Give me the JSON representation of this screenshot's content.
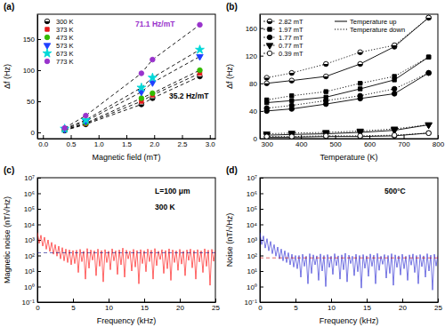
{
  "chart_data": [
    {
      "type": "scatter",
      "title": "(a)",
      "x_label": "Magnetic field (mT)",
      "y_label": "Δf (Hz)",
      "x": [
        0.39,
        0.77,
        1.77,
        1.97,
        2.82
      ],
      "xlim": [
        -0.1,
        3.1
      ],
      "xticks": [
        {
          "value": 0,
          "label": "0.0"
        },
        {
          "value": 0.5,
          "label": "0.5"
        },
        {
          "value": 1,
          "label": "1.0"
        },
        {
          "value": 1.5,
          "label": "1.5"
        },
        {
          "value": 2,
          "label": "2.0"
        },
        {
          "value": 2.5,
          "label": "2.5"
        },
        {
          "value": 3,
          "label": "3.0"
        }
      ],
      "ylim": [
        -10,
        190
      ],
      "yticks": [
        0,
        50,
        100,
        150
      ],
      "legend": "top-left",
      "series": [
        {
          "name": "300 K",
          "color": "#000000",
          "marker": "circle-half",
          "line_style": "dashed",
          "values": [
            3,
            13,
            45,
            55,
            90
          ]
        },
        {
          "name": "373 K",
          "color": "#e41a1c",
          "marker": "square",
          "line_style": "dashed",
          "values": [
            4,
            14,
            50,
            60,
            95
          ]
        },
        {
          "name": "473 K",
          "color": "#33bb00",
          "marker": "circle",
          "line_style": "dashed",
          "values": [
            4,
            15,
            55,
            63,
            100
          ]
        },
        {
          "name": "573 K",
          "color": "#1f3fff",
          "marker": "triangle-down",
          "line_style": "dashed",
          "values": [
            5,
            18,
            65,
            80,
            122
          ]
        },
        {
          "name": "673 K",
          "color": "#00d8d8",
          "marker": "star",
          "line_style": "dashed",
          "values": [
            6,
            20,
            72,
            88,
            133
          ]
        },
        {
          "name": "773 K",
          "color": "#9933cc",
          "marker": "circle",
          "line_style": "dashed",
          "values": [
            7,
            27,
            95,
            117,
            173
          ]
        }
      ],
      "annotations": [
        {
          "text": "71.1 Hz/mT",
          "color": "#9933cc"
        },
        {
          "text": "35.2 Hz/mT",
          "color": "#000000"
        }
      ]
    },
    {
      "type": "line",
      "title": "(b)",
      "x_label": "Temperature (K)",
      "y_label": "Δf (Hz)",
      "x": [
        300,
        373,
        473,
        573,
        673,
        773
      ],
      "xlim": [
        280,
        800
      ],
      "xticks": [
        300,
        400,
        500,
        600,
        700,
        800
      ],
      "ylim": [
        0,
        180
      ],
      "yticks": [
        0,
        40,
        80,
        120,
        160
      ],
      "legend": "top-left",
      "series": [
        {
          "name": "2.82 mT",
          "group": "Temperature up",
          "color": "#000000",
          "marker": "circle-half",
          "line_style": "solid",
          "values": [
            80,
            84,
            90,
            108,
            133,
            175
          ]
        },
        {
          "name": "2.82 mT",
          "group": "Temperature down",
          "color": "#000000",
          "marker": "circle-half",
          "line_style": "dotted",
          "values": [
            88,
            95,
            108,
            125,
            135,
            175
          ]
        },
        {
          "name": "1.97 mT",
          "group": "Temperature up",
          "color": "#000000",
          "marker": "square",
          "line_style": "solid",
          "values": [
            52,
            55,
            60,
            72,
            85,
            118
          ]
        },
        {
          "name": "1.97 mT",
          "group": "Temperature down",
          "color": "#000000",
          "marker": "square",
          "line_style": "dotted",
          "values": [
            56,
            62,
            68,
            80,
            90,
            118
          ]
        },
        {
          "name": "1.77 mT",
          "group": "Temperature up",
          "color": "#000000",
          "marker": "circle",
          "line_style": "solid",
          "values": [
            40,
            43,
            50,
            58,
            65,
            95
          ]
        },
        {
          "name": "1.77 mT",
          "group": "Temperature down",
          "color": "#000000",
          "marker": "circle",
          "line_style": "dotted",
          "values": [
            44,
            48,
            55,
            62,
            72,
            95
          ]
        },
        {
          "name": "0.77 mT",
          "group": "Temperature up",
          "color": "#000000",
          "marker": "triangle-down",
          "line_style": "solid",
          "values": [
            5,
            6,
            7,
            9,
            12,
            20
          ]
        },
        {
          "name": "0.77 mT",
          "group": "Temperature down",
          "color": "#000000",
          "marker": "triangle-down",
          "line_style": "dotted",
          "values": [
            7,
            8,
            9,
            11,
            14,
            20
          ]
        },
        {
          "name": "0.39 mT",
          "group": "Temperature up",
          "color": "#000000",
          "marker": "circle-open",
          "line_style": "solid",
          "values": [
            2,
            2,
            3,
            3,
            4,
            8
          ]
        },
        {
          "name": "0.39 mT",
          "group": "Temperature down",
          "color": "#000000",
          "marker": "circle-open",
          "line_style": "dotted",
          "values": [
            3,
            3,
            4,
            4,
            5,
            8
          ]
        }
      ]
    },
    {
      "type": "line",
      "title": "(c)",
      "x_label": "Frequency (kHz)",
      "y_label": "Magnetic noise (nT/√Hz)",
      "log": "y",
      "x": [
        0,
        0.25,
        0.5,
        0.75,
        1,
        1.25,
        1.5,
        1.75,
        2,
        2.25,
        2.5,
        2.75,
        3,
        3.25,
        3.5,
        3.75,
        4,
        4.25,
        4.5,
        4.75,
        5,
        5.25,
        5.5,
        5.75,
        6,
        6.25,
        6.5,
        6.75,
        7,
        7.25,
        7.5,
        7.75,
        8,
        8.25,
        8.5,
        8.75,
        9,
        9.25,
        9.5,
        9.75,
        10,
        10.25,
        10.5,
        10.75,
        11,
        11.25,
        11.5,
        11.75,
        12,
        12.25,
        12.5,
        12.75,
        13,
        13.25,
        13.5,
        13.75,
        14,
        14.25,
        14.5,
        14.75,
        15,
        15.25,
        15.5,
        15.75,
        16,
        16.25,
        16.5,
        16.75,
        17,
        17.25,
        17.5,
        17.75,
        18,
        18.25,
        18.5,
        18.75,
        19,
        19.25,
        19.5,
        19.75,
        20,
        20.25,
        20.5,
        20.75,
        21,
        21.25,
        21.5,
        21.75,
        22,
        22.25,
        22.5,
        22.75,
        23,
        23.25,
        23.5,
        23.75,
        24,
        24.25,
        24.5,
        24.75,
        25
      ],
      "xlim": [
        0,
        25
      ],
      "xticks": [
        0,
        5,
        10,
        15,
        20,
        25
      ],
      "ylim": [
        0.1,
        10000000
      ],
      "yticks": [
        {
          "value": 0.1,
          "label": "10⁻¹"
        },
        {
          "value": 1,
          "label": "10⁰"
        },
        {
          "value": 10,
          "label": "10¹"
        },
        {
          "value": 100,
          "label": "10²"
        },
        {
          "value": 1000,
          "label": "10³"
        },
        {
          "value": 10000,
          "label": "10⁴"
        },
        {
          "value": 100000,
          "label": "10⁵"
        },
        {
          "value": 1000000,
          "label": "10⁶"
        },
        {
          "value": 10000000,
          "label": "10⁷"
        }
      ],
      "series": [
        {
          "color": "#ff0000",
          "line_style": "solid",
          "values": [
            3000,
            600,
            2000,
            400,
            1500,
            250,
            1000,
            180,
            700,
            120,
            500,
            90,
            400,
            60,
            320,
            45,
            260,
            35,
            230,
            25,
            210,
            30,
            220,
            8,
            250,
            40,
            190,
            3,
            280,
            15,
            230,
            50,
            200,
            5,
            260,
            20,
            210,
            2,
            240,
            35,
            190,
            12,
            270,
            45,
            200,
            6,
            230,
            25,
            300,
            4,
            220,
            60,
            190,
            10,
            250,
            18,
            210,
            1.5,
            240,
            30,
            200,
            9,
            260,
            40,
            220,
            3,
            280,
            22,
            190,
            55,
            240,
            7,
            210,
            14,
            270,
            2.5,
            230,
            35,
            200,
            11,
            250,
            28,
            190,
            5,
            230,
            48,
            260,
            16,
            210,
            3,
            240,
            38,
            200,
            8,
            270,
            20,
            220,
            1.2,
            250,
            42,
            210
          ]
        },
        {
          "color": "#000080",
          "line_style": "dashed",
          "x": [
            0,
            25
          ],
          "values": [
            150,
            150
          ]
        }
      ],
      "annotations": [
        {
          "text": "L=100 μm",
          "color": "#000000"
        },
        {
          "text": "300 K",
          "color": "#000000"
        }
      ]
    },
    {
      "type": "line",
      "title": "(d)",
      "x_label": "Frequency (kHz)",
      "y_label": "Noise (nT/√Hz)",
      "log": "y",
      "x": [
        0,
        0.25,
        0.5,
        0.75,
        1,
        1.25,
        1.5,
        1.75,
        2,
        2.25,
        2.5,
        2.75,
        3,
        3.25,
        3.5,
        3.75,
        4,
        4.25,
        4.5,
        4.75,
        5,
        5.25,
        5.5,
        5.75,
        6,
        6.25,
        6.5,
        6.75,
        7,
        7.25,
        7.5,
        7.75,
        8,
        8.25,
        8.5,
        8.75,
        9,
        9.25,
        9.5,
        9.75,
        10,
        10.25,
        10.5,
        10.75,
        11,
        11.25,
        11.5,
        11.75,
        12,
        12.25,
        12.5,
        12.75,
        13,
        13.25,
        13.5,
        13.75,
        14,
        14.25,
        14.5,
        14.75,
        15,
        15.25,
        15.5,
        15.75,
        16,
        16.25,
        16.5,
        16.75,
        17,
        17.25,
        17.5,
        17.75,
        18,
        18.25,
        18.5,
        18.75,
        19,
        19.25,
        19.5,
        19.75,
        20,
        20.25,
        20.5,
        20.75,
        21,
        21.25,
        21.5,
        21.75,
        22,
        22.25,
        22.5,
        22.75,
        23,
        23.25,
        23.5,
        23.75,
        24,
        24.25,
        24.5,
        24.75,
        25
      ],
      "xlim": [
        0,
        25
      ],
      "xticks": [
        0,
        5,
        10,
        15,
        20,
        25
      ],
      "ylim": [
        0.1,
        10000000
      ],
      "yticks": [
        {
          "value": 0.1,
          "label": "10⁻¹"
        },
        {
          "value": 1,
          "label": "10⁰"
        },
        {
          "value": 10,
          "label": "10¹"
        },
        {
          "value": 100,
          "label": "10²"
        },
        {
          "value": 1000,
          "label": "10³"
        },
        {
          "value": 10000,
          "label": "10⁴"
        },
        {
          "value": 100000,
          "label": "10⁵"
        },
        {
          "value": 1000000,
          "label": "10⁶"
        },
        {
          "value": 10000000,
          "label": "10⁷"
        }
      ],
      "series": [
        {
          "color": "#1f1fd0",
          "line_style": "solid",
          "values": [
            3000,
            500,
            1800,
            300,
            1200,
            200,
            800,
            130,
            500,
            90,
            350,
            60,
            260,
            45,
            200,
            35,
            150,
            25,
            120,
            18,
            100,
            14,
            100,
            4,
            120,
            20,
            90,
            1.5,
            130,
            7,
            110,
            25,
            95,
            2.5,
            125,
            10,
            100,
            1,
            115,
            17,
            90,
            6,
            130,
            22,
            95,
            3,
            110,
            12,
            140,
            2,
            105,
            30,
            90,
            5,
            120,
            9,
            100,
            0.8,
            115,
            15,
            95,
            4.5,
            125,
            20,
            105,
            1.5,
            135,
            11,
            90,
            27,
            115,
            3.5,
            100,
            7,
            130,
            1.2,
            110,
            17,
            95,
            5.5,
            120,
            14,
            90,
            2.5,
            110,
            24,
            125,
            8,
            100,
            1.5,
            115,
            19,
            95,
            4,
            130,
            10,
            105,
            0.6,
            120,
            21,
            100
          ]
        },
        {
          "color": "#cc0000",
          "line_style": "dashed",
          "x": [
            0,
            25
          ],
          "values": [
            70,
            70
          ]
        }
      ],
      "annotations": [
        {
          "text": "500°C",
          "color": "#000000"
        }
      ]
    }
  ]
}
